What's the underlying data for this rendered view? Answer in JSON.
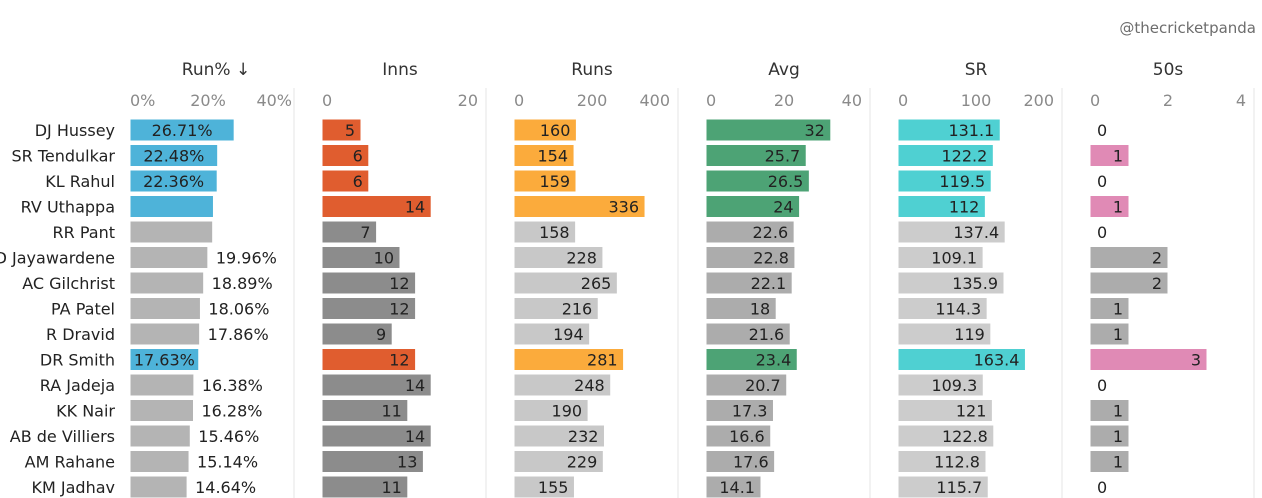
{
  "watermark": "@thecricketpanda",
  "chart_data": {
    "type": "bar",
    "title": "",
    "players": [
      "DJ Hussey",
      "SR Tendulkar",
      "KL Rahul",
      "RV Uthappa",
      "RR Pant",
      "DPMD Jayawardene",
      "AC Gilchrist",
      "PA Patel",
      "R Dravid",
      "DR Smith",
      "RA Jadeja",
      "KK Nair",
      "AB de Villiers",
      "AM Rahane",
      "KM Jadhav"
    ],
    "player_labels": [
      "DJ Hussey",
      "SR Tendulkar",
      "KL Rahul",
      "RV Uthappa",
      "RR Pant",
      "D Jayawardene",
      "AC Gilchrist",
      "PA Patel",
      "R Dravid",
      "DR Smith",
      "RA Jadeja",
      "KK Nair",
      "AB de Villiers",
      "AM Rahane",
      "KM Jadhav"
    ],
    "highlighted": [
      true,
      true,
      true,
      true,
      false,
      false,
      false,
      false,
      false,
      true,
      false,
      false,
      false,
      false,
      false
    ],
    "panels": [
      {
        "name": "Run% ↓",
        "xlim": [
          0,
          40
        ],
        "ticks": [
          "0%",
          "20%",
          "40%"
        ],
        "tick_values": [
          0,
          20,
          40
        ],
        "values": [
          26.71,
          22.48,
          22.36,
          21.4,
          21.2,
          19.96,
          18.89,
          18.06,
          17.86,
          17.63,
          16.38,
          16.28,
          15.46,
          15.14,
          14.64
        ],
        "labels": [
          "26.71%",
          "22.48%",
          "22.36%",
          "",
          "",
          "19.96%",
          "18.89%",
          "18.06%",
          "17.86%",
          "17.63%",
          "16.38%",
          "16.28%",
          "15.46%",
          "15.14%",
          "14.64%"
        ],
        "highlight_color": "#4eb3d9",
        "label_mode": "run"
      },
      {
        "name": "Inns",
        "xlim": [
          0,
          20
        ],
        "ticks": [
          "0",
          "20"
        ],
        "tick_values": [
          0,
          20
        ],
        "values": [
          5,
          6,
          6,
          14,
          7,
          10,
          12,
          12,
          9,
          12,
          14,
          11,
          14,
          13,
          11
        ],
        "labels": [
          "5",
          "6",
          "6",
          "14",
          "7",
          "10",
          "12",
          "12",
          "9",
          "12",
          "14",
          "11",
          "14",
          "13",
          "11"
        ],
        "highlight_color": "#e05d2f",
        "base_color": "#8c8c8c",
        "label_mode": "inside"
      },
      {
        "name": "Runs",
        "xlim": [
          0,
          400
        ],
        "ticks": [
          "0",
          "200",
          "400"
        ],
        "tick_values": [
          0,
          200,
          400
        ],
        "values": [
          160,
          154,
          159,
          336,
          158,
          228,
          265,
          216,
          194,
          281,
          248,
          190,
          232,
          229,
          155
        ],
        "labels": [
          "160",
          "154",
          "159",
          "336",
          "158",
          "228",
          "265",
          "216",
          "194",
          "281",
          "248",
          "190",
          "232",
          "229",
          "155"
        ],
        "highlight_color": "#fbab3c",
        "base_color": "#c8c8c8",
        "label_mode": "inside"
      },
      {
        "name": "Avg",
        "xlim": [
          0,
          40
        ],
        "ticks": [
          "0",
          "20",
          "40"
        ],
        "tick_values": [
          0,
          20,
          40
        ],
        "values": [
          32,
          25.7,
          26.5,
          24,
          22.6,
          22.8,
          22.1,
          18,
          21.6,
          23.4,
          20.7,
          17.3,
          16.6,
          17.6,
          14.1
        ],
        "labels": [
          "32",
          "25.7",
          "26.5",
          "24",
          "22.6",
          "22.8",
          "22.1",
          "18",
          "21.6",
          "23.4",
          "20.7",
          "17.3",
          "16.6",
          "17.6",
          "14.1"
        ],
        "highlight_color": "#4da375",
        "base_color": "#acacac",
        "label_mode": "inside"
      },
      {
        "name": "SR",
        "xlim": [
          0,
          200
        ],
        "ticks": [
          "0",
          "100",
          "200"
        ],
        "tick_values": [
          0,
          100,
          200
        ],
        "values": [
          131.1,
          122.2,
          119.5,
          112,
          137.4,
          109.1,
          135.9,
          114.3,
          119,
          163.4,
          109.3,
          121,
          122.8,
          112.8,
          115.7
        ],
        "labels": [
          "131.1",
          "122.2",
          "119.5",
          "112",
          "137.4",
          "109.1",
          "135.9",
          "114.3",
          "119",
          "163.4",
          "109.3",
          "121",
          "122.8",
          "112.8",
          "115.7"
        ],
        "highlight_color": "#4fd0d2",
        "base_color": "#cccccc",
        "label_mode": "inside"
      },
      {
        "name": "50s",
        "xlim": [
          0,
          4
        ],
        "ticks": [
          "0",
          "2",
          "4"
        ],
        "tick_values": [
          0,
          2,
          4
        ],
        "values": [
          0,
          1,
          0,
          1,
          0,
          2,
          2,
          1,
          1,
          3,
          0,
          1,
          1,
          1,
          0
        ],
        "labels": [
          "0",
          "1",
          "0",
          "1",
          "0",
          "2",
          "2",
          "1",
          "1",
          "3",
          "0",
          "1",
          "1",
          "1",
          "0"
        ],
        "highlight_color": "#e08ab5",
        "base_color": "#acacac",
        "label_mode": "inside"
      }
    ]
  }
}
